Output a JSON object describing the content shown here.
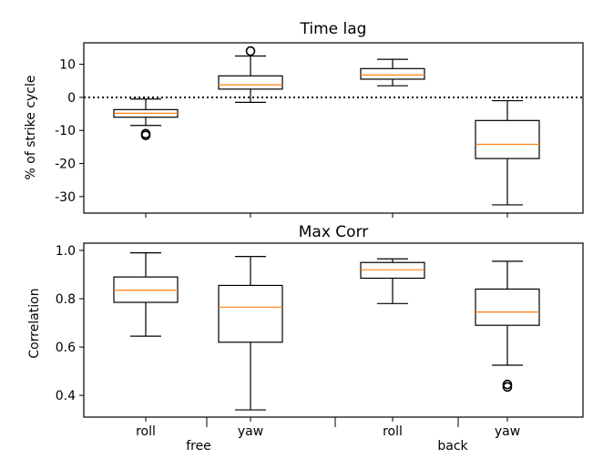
{
  "chart_data": [
    {
      "type": "boxplot",
      "title": "Time lag",
      "xlabel": "",
      "ylabel": "% of strike cycle",
      "ylim": [
        -35,
        16.5
      ],
      "yticks": [
        10,
        0,
        -10,
        -20,
        -30
      ],
      "reference_line": {
        "y": 0,
        "style": "dotted"
      },
      "boxes": [
        {
          "group": "free",
          "category": "roll",
          "whisker_low": -8.5,
          "q1": -6,
          "median": -4.8,
          "q3": -3.7,
          "whisker_high": -0.5,
          "outliers": [
            -11,
            -11.5
          ]
        },
        {
          "group": "free",
          "category": "yaw",
          "whisker_low": -1.5,
          "q1": 2.5,
          "median": 3.8,
          "q3": 6.5,
          "whisker_high": 12.5,
          "outliers": [
            14
          ]
        },
        {
          "group": "back",
          "category": "roll",
          "whisker_low": 3.5,
          "q1": 5.5,
          "median": 6.8,
          "q3": 8.7,
          "whisker_high": 11.5,
          "outliers": []
        },
        {
          "group": "back",
          "category": "yaw",
          "whisker_low": -32.5,
          "q1": -18.5,
          "median": -14.2,
          "q3": -7,
          "whisker_high": -1,
          "outliers": []
        }
      ]
    },
    {
      "type": "boxplot",
      "title": "Max Corr",
      "xlabel": "",
      "ylabel": "Correlation",
      "ylim": [
        0.31,
        1.03
      ],
      "yticks": [
        "1.0",
        "0.8",
        "0.6",
        "0.4"
      ],
      "boxes": [
        {
          "group": "free",
          "category": "roll",
          "whisker_low": 0.645,
          "q1": 0.785,
          "median": 0.835,
          "q3": 0.89,
          "whisker_high": 0.99,
          "outliers": []
        },
        {
          "group": "free",
          "category": "yaw",
          "whisker_low": 0.34,
          "q1": 0.62,
          "median": 0.765,
          "q3": 0.855,
          "whisker_high": 0.975,
          "outliers": []
        },
        {
          "group": "back",
          "category": "roll",
          "whisker_low": 0.78,
          "q1": 0.885,
          "median": 0.92,
          "q3": 0.95,
          "whisker_high": 0.965,
          "outliers": []
        },
        {
          "group": "back",
          "category": "yaw",
          "whisker_low": 0.525,
          "q1": 0.69,
          "median": 0.745,
          "q3": 0.84,
          "whisker_high": 0.955,
          "outliers": [
            0.445,
            0.435
          ]
        }
      ]
    }
  ],
  "x_axis": {
    "tick_labels": [
      "roll",
      "yaw",
      "roll",
      "yaw"
    ],
    "group_labels": [
      "free",
      "back"
    ]
  },
  "colors": {
    "median": "#ff7f0e",
    "box": "#000000",
    "background": "#ffffff"
  }
}
